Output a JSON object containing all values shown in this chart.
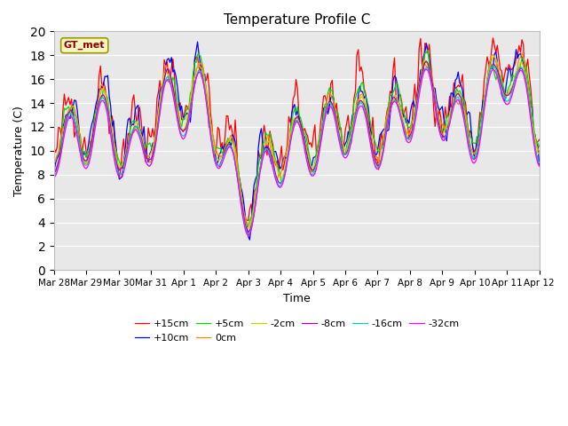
{
  "title": "Temperature Profile C",
  "xlabel": "Time",
  "ylabel": "Temperature (C)",
  "ylim": [
    0,
    20
  ],
  "yticks": [
    0,
    2,
    4,
    6,
    8,
    10,
    12,
    14,
    16,
    18,
    20
  ],
  "xtick_labels": [
    "Mar 28",
    "Mar 29",
    "Mar 30",
    "Mar 31",
    "Apr 1",
    "Apr 2",
    "Apr 3",
    "Apr 4",
    "Apr 5",
    "Apr 6",
    "Apr 7",
    "Apr 8",
    "Apr 9",
    "Apr 10",
    "Apr 11",
    "Apr 12"
  ],
  "background_color": "#e8e8e8",
  "legend_label": "GT_met",
  "legend_box_facecolor": "#f5f5c0",
  "legend_box_edgecolor": "#999900",
  "series_labels": [
    "+15cm",
    "+10cm",
    "+5cm",
    "0cm",
    "-2cm",
    "-8cm",
    "-16cm",
    "-32cm"
  ],
  "series_colors": [
    "#ff0000",
    "#0000ff",
    "#00dd00",
    "#ff8800",
    "#cccc00",
    "#aa00aa",
    "#00cccc",
    "#ff00ff"
  ],
  "n_points": 336
}
